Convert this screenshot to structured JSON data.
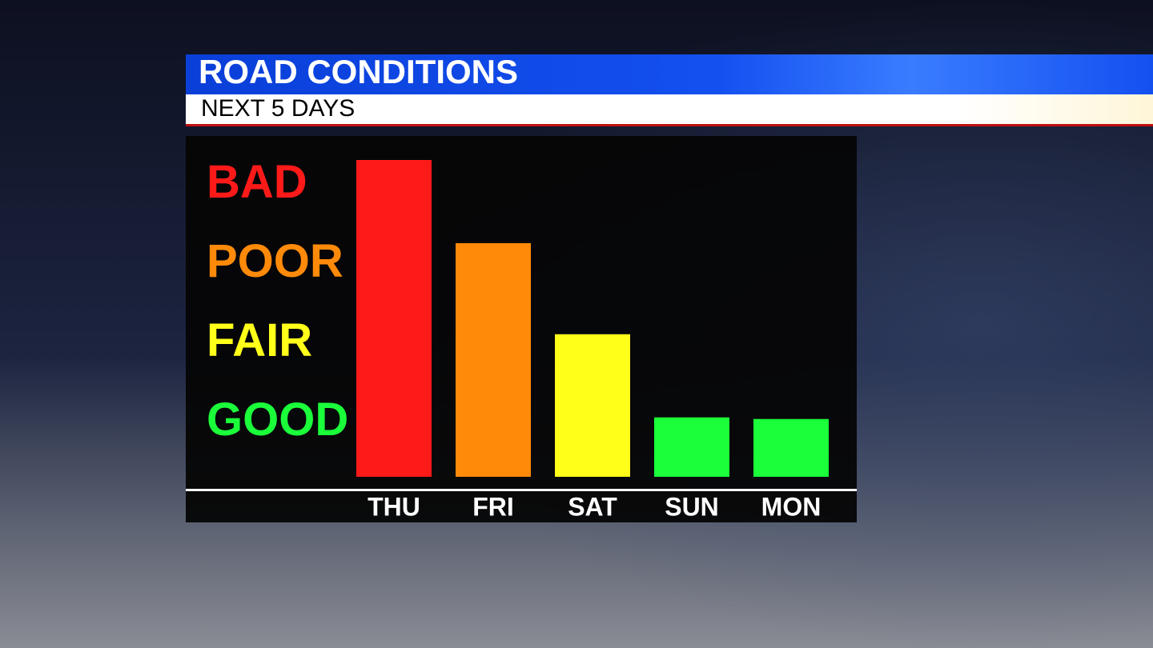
{
  "chart_data": {
    "type": "bar",
    "title": "ROAD CONDITIONS",
    "subtitle": "NEXT 5 DAYS",
    "categories": [
      "THU",
      "FRI",
      "SAT",
      "SUN",
      "MON"
    ],
    "values": [
      4.3,
      3.25,
      2.1,
      1.05,
      1.03
    ],
    "colors": [
      "#ff1a1a",
      "#ff8a0a",
      "#ffff1a",
      "#1aff3a",
      "#1aff3a"
    ],
    "ylim": [
      0.3,
      4.3
    ],
    "yticks": [
      {
        "value": 1,
        "label": "GOOD"
      },
      {
        "value": 2,
        "label": "FAIR"
      },
      {
        "value": 3,
        "label": "POOR"
      },
      {
        "value": 4,
        "label": "BAD"
      }
    ],
    "ytick_colors": [
      "#1aff3a",
      "#ffff1a",
      "#ff8a0a",
      "#ff1a1a"
    ]
  }
}
